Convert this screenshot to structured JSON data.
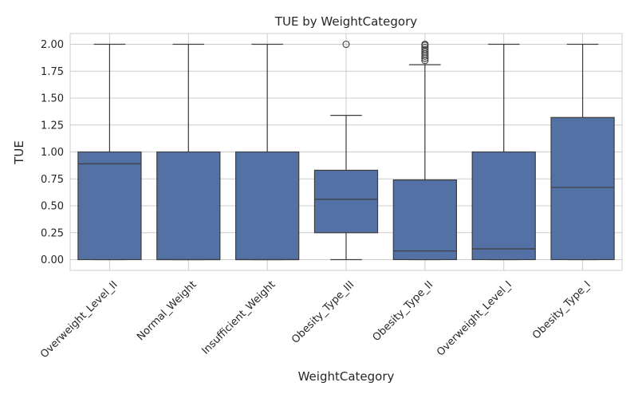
{
  "chart_data": {
    "type": "box",
    "title": "TUE by WeightCategory",
    "xlabel": "WeightCategory",
    "ylabel": "TUE",
    "ylim": [
      -0.1,
      2.1
    ],
    "yticks": [
      0.0,
      0.25,
      0.5,
      0.75,
      1.0,
      1.25,
      1.5,
      1.75,
      2.0
    ],
    "ytick_labels": [
      "0.00",
      "0.25",
      "0.50",
      "0.75",
      "1.00",
      "1.25",
      "1.50",
      "1.75",
      "2.00"
    ],
    "grid": true,
    "box_color": "#5471a6",
    "edge_color": "#3d3d3d",
    "categories": [
      "Overweight_Level_II",
      "Normal_Weight",
      "Insufficient_Weight",
      "Obesity_Type_III",
      "Obesity_Type_II",
      "Overweight_Level_I",
      "Obesity_Type_I"
    ],
    "boxes": [
      {
        "category": "Overweight_Level_II",
        "whisker_low": 0.0,
        "q1": 0.0,
        "median": 0.89,
        "q3": 1.0,
        "whisker_high": 2.0,
        "outliers": []
      },
      {
        "category": "Normal_Weight",
        "whisker_low": 0.0,
        "q1": 0.0,
        "median": 0.0,
        "q3": 1.0,
        "whisker_high": 2.0,
        "outliers": []
      },
      {
        "category": "Insufficient_Weight",
        "whisker_low": 0.0,
        "q1": 0.0,
        "median": 0.0,
        "q3": 1.0,
        "whisker_high": 2.0,
        "outliers": []
      },
      {
        "category": "Obesity_Type_III",
        "whisker_low": 0.0,
        "q1": 0.25,
        "median": 0.56,
        "q3": 0.83,
        "whisker_high": 1.34,
        "outliers": [
          2.0
        ]
      },
      {
        "category": "Obesity_Type_II",
        "whisker_low": 0.0,
        "q1": 0.0,
        "median": 0.08,
        "q3": 0.74,
        "whisker_high": 1.81,
        "outliers": [
          1.85,
          1.87,
          1.89,
          1.91,
          1.93,
          1.95,
          1.97,
          1.99,
          2.0
        ]
      },
      {
        "category": "Overweight_Level_I",
        "whisker_low": 0.0,
        "q1": 0.0,
        "median": 0.1,
        "q3": 1.0,
        "whisker_high": 2.0,
        "outliers": []
      },
      {
        "category": "Obesity_Type_I",
        "whisker_low": 0.0,
        "q1": 0.0,
        "median": 0.67,
        "q3": 1.32,
        "whisker_high": 2.0,
        "outliers": []
      }
    ]
  }
}
